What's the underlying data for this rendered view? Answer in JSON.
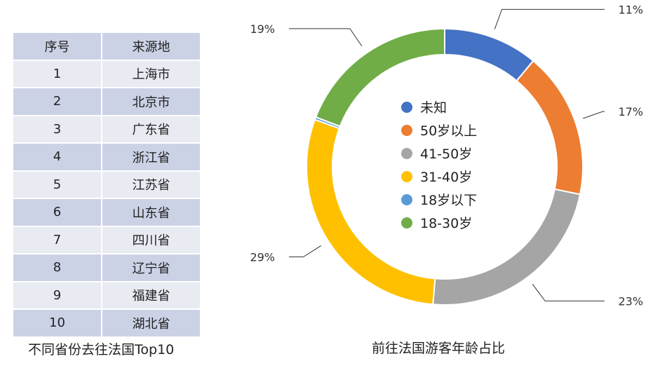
{
  "table": {
    "headers": [
      "序号",
      "来源地"
    ],
    "rows": [
      [
        "1",
        "上海市"
      ],
      [
        "2",
        "北京市"
      ],
      [
        "3",
        "广东省"
      ],
      [
        "4",
        "浙江省"
      ],
      [
        "5",
        "江苏省"
      ],
      [
        "6",
        "山东省"
      ],
      [
        "7",
        "四川省"
      ],
      [
        "8",
        "辽宁省"
      ],
      [
        "9",
        "福建省"
      ],
      [
        "10",
        "湖北省"
      ]
    ],
    "caption": "不同省份去往法国Top10"
  },
  "chart_data": {
    "type": "pie",
    "subtype": "donut",
    "title": "前往法国游客年龄占比",
    "legend_position": "center",
    "slices": [
      {
        "label": "未知",
        "value": 11,
        "value_label": "11%",
        "color": "#4472c4"
      },
      {
        "label": "50岁以上",
        "value": 17,
        "value_label": "17%",
        "color": "#ed7d31"
      },
      {
        "label": "41-50岁",
        "value": 23,
        "value_label": "23%",
        "color": "#a5a5a5"
      },
      {
        "label": "31-40岁",
        "value": 29,
        "value_label": "29%",
        "color": "#ffc000"
      },
      {
        "label": "18岁以下",
        "value": 0.3,
        "value_label": "",
        "color": "#5b9bd5"
      },
      {
        "label": "18-30岁",
        "value": 19,
        "value_label": "19%",
        "color": "#70ad47"
      }
    ]
  }
}
